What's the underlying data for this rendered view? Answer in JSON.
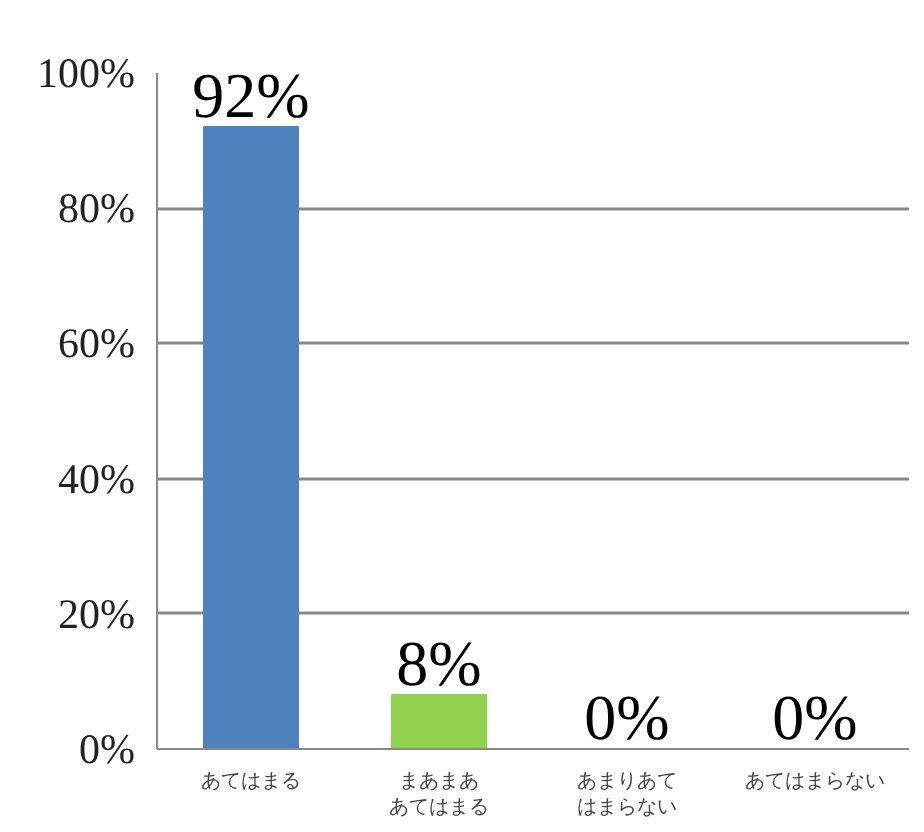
{
  "chart_data": {
    "type": "bar",
    "categories": [
      "あてはまる",
      "まあまああてはまる",
      "あまりあてはまらない",
      "あてはまらない"
    ],
    "values": [
      92,
      8,
      0,
      0
    ],
    "colors": [
      "#4f81bd",
      "#92d050",
      "#c0504d",
      "#8064a2"
    ],
    "value_labels": [
      "92%",
      "8%",
      "0%",
      "0%"
    ],
    "ylim": [
      0,
      100
    ],
    "yticks": [
      {
        "value": 0,
        "label": "0%"
      },
      {
        "value": 20,
        "label": "20%"
      },
      {
        "value": 40,
        "label": "40%"
      },
      {
        "value": 60,
        "label": "60%"
      },
      {
        "value": 80,
        "label": "80%"
      },
      {
        "value": 100,
        "label": "100%"
      }
    ],
    "grid": "y"
  }
}
